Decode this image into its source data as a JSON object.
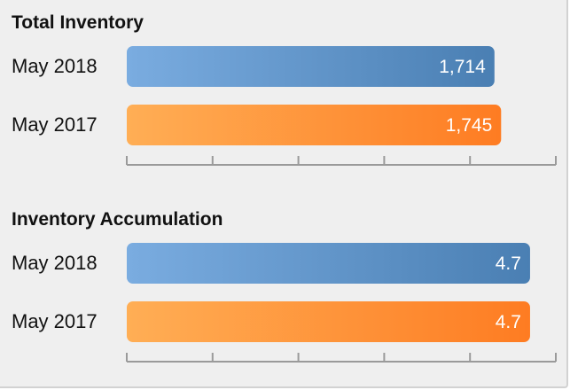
{
  "chart_data": [
    {
      "type": "bar",
      "orientation": "horizontal",
      "title": "Total Inventory",
      "categories": [
        "May 2018",
        "May 2017"
      ],
      "values": [
        1714,
        1745
      ],
      "value_labels": [
        "1,714",
        "1,745"
      ],
      "xlim": [
        0,
        2000
      ],
      "grid": false,
      "colors": [
        "#4f86bd",
        "#fe8630"
      ]
    },
    {
      "type": "bar",
      "orientation": "horizontal",
      "title": "Inventory Accumulation",
      "categories": [
        "May 2018",
        "May 2017"
      ],
      "values": [
        4.7,
        4.7
      ],
      "value_labels": [
        "4.7",
        "4.7"
      ],
      "xlim": [
        0,
        5
      ],
      "grid": false,
      "colors": [
        "#4f86bd",
        "#fe8630"
      ]
    }
  ]
}
